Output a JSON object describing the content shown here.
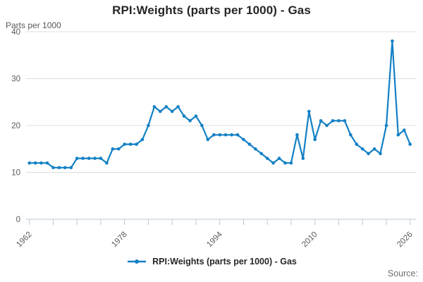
{
  "title": "RPI:Weights (parts per 1000) - Gas",
  "y_axis_unit": "Parts per 1000",
  "legend": {
    "label": "RPI:Weights (parts per 1000) - Gas"
  },
  "source_label": "Source:",
  "colors": {
    "line": "#1380c4",
    "grid": "#dcdcdc",
    "axis": "#b9c8d4",
    "tick_text": "#595959",
    "title_text": "#262626",
    "source_text": "#6e6e6e"
  },
  "chart_data": {
    "type": "line",
    "title": "RPI:Weights (parts per 1000) - Gas",
    "xlabel": "",
    "ylabel": "Parts per 1000",
    "ylim": [
      0,
      40
    ],
    "yticks": [
      0,
      10,
      20,
      30,
      40
    ],
    "xtick_interval_years": 4,
    "xtick_labeled_years": [
      1962,
      1978,
      1994,
      2010,
      2026
    ],
    "grid": "horizontal-only",
    "legend_position": "bottom-center",
    "marker": "dot",
    "series": [
      {
        "name": "RPI:Weights (parts per 1000) - Gas",
        "years": [
          1962,
          1963,
          1964,
          1965,
          1966,
          1967,
          1968,
          1969,
          1970,
          1971,
          1972,
          1973,
          1974,
          1975,
          1976,
          1977,
          1978,
          1979,
          1980,
          1981,
          1982,
          1983,
          1984,
          1985,
          1986,
          1987,
          1988,
          1989,
          1990,
          1991,
          1992,
          1993,
          1994,
          1995,
          1996,
          1997,
          1998,
          1999,
          2000,
          2001,
          2002,
          2003,
          2004,
          2005,
          2006,
          2007,
          2008,
          2009,
          2010,
          2011,
          2012,
          2013,
          2014,
          2015,
          2016,
          2017,
          2018,
          2019,
          2020,
          2021,
          2022,
          2023,
          2024,
          2025,
          2026
        ],
        "values": [
          12,
          12,
          12,
          12,
          11,
          11,
          11,
          11,
          13,
          13,
          13,
          13,
          13,
          12,
          15,
          15,
          16,
          16,
          16,
          17,
          20,
          24,
          23,
          24,
          23,
          24,
          22,
          21,
          22,
          20,
          17,
          18,
          18,
          18,
          18,
          18,
          17,
          16,
          15,
          14,
          13,
          12,
          13,
          12,
          12,
          18,
          13,
          23,
          17,
          21,
          20,
          21,
          21,
          21,
          18,
          16,
          15,
          14,
          15,
          14,
          20,
          38,
          18,
          19,
          16
        ]
      }
    ]
  }
}
